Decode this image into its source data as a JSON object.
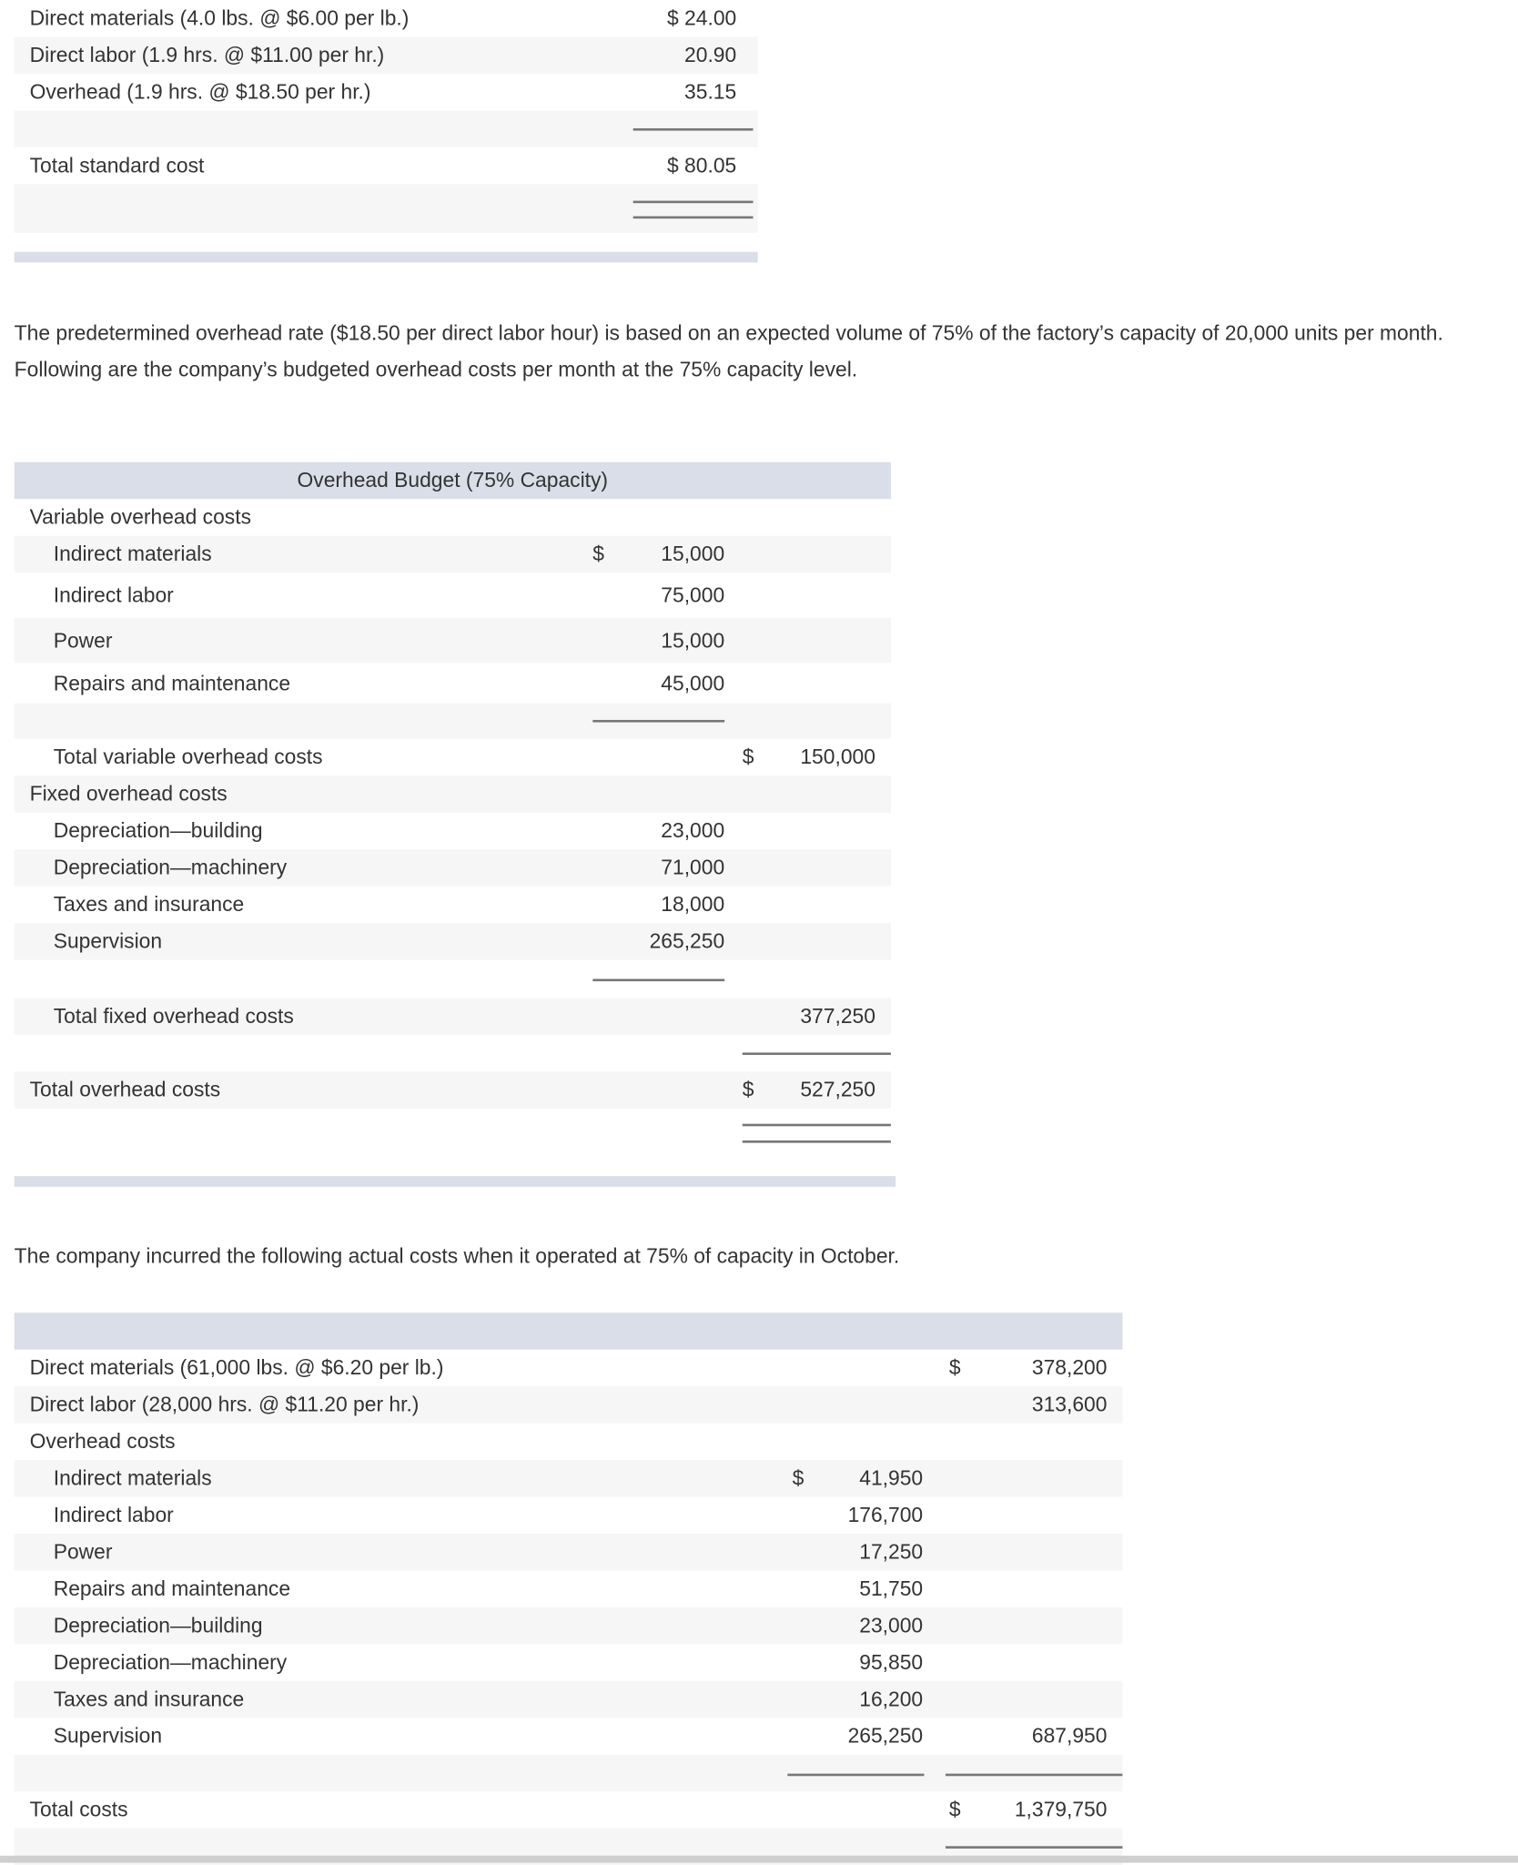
{
  "standard_cost_table": {
    "rows": [
      {
        "label": "Direct materials (4.0 lbs. @ $6.00 per lb.)",
        "amount": "$ 24.00"
      },
      {
        "label": "Direct labor (1.9 hrs. @ $11.00 per hr.)",
        "amount": "20.90"
      },
      {
        "label": "Overhead (1.9 hrs. @ $18.50 per hr.)",
        "amount": "35.15"
      },
      {
        "label": "",
        "amount": ""
      },
      {
        "label": "Total standard cost",
        "amount": "$ 80.05"
      },
      {
        "label": "",
        "amount": ""
      }
    ]
  },
  "paragraph_1": "The predetermined overhead rate ($18.50 per direct labor hour) is based on an expected volume of 75% of the factory’s capacity of 20,000 units per month. Following are the company’s budgeted overhead costs per month at the 75% capacity level.",
  "overhead_budget": {
    "title": "Overhead Budget (75% Capacity)",
    "rows": [
      {
        "label": "Variable overhead costs",
        "col1": "",
        "col1_dollar": "",
        "col2": "",
        "col2_dollar": ""
      },
      {
        "label": "Indirect materials",
        "col1": "15,000",
        "col1_dollar": "$",
        "col2": "",
        "col2_dollar": ""
      },
      {
        "label": "Indirect labor",
        "col1": "75,000",
        "col1_dollar": "",
        "col2": "",
        "col2_dollar": ""
      },
      {
        "label": "Power",
        "col1": "15,000",
        "col1_dollar": "",
        "col2": "",
        "col2_dollar": ""
      },
      {
        "label": "Repairs and maintenance",
        "col1": "45,000",
        "col1_dollar": "",
        "col2": "",
        "col2_dollar": ""
      },
      {
        "label": "",
        "col1": "",
        "col1_dollar": "",
        "col2": "",
        "col2_dollar": ""
      },
      {
        "label": "Total variable overhead costs",
        "col1": "",
        "col1_dollar": "",
        "col2": "150,000",
        "col2_dollar": "$"
      },
      {
        "label": "Fixed overhead costs",
        "col1": "",
        "col1_dollar": "",
        "col2": "",
        "col2_dollar": ""
      },
      {
        "label": "Depreciation—building",
        "col1": "23,000",
        "col1_dollar": "",
        "col2": "",
        "col2_dollar": ""
      },
      {
        "label": "Depreciation—machinery",
        "col1": "71,000",
        "col1_dollar": "",
        "col2": "",
        "col2_dollar": ""
      },
      {
        "label": "Taxes and insurance",
        "col1": "18,000",
        "col1_dollar": "",
        "col2": "",
        "col2_dollar": ""
      },
      {
        "label": "Supervision",
        "col1": "265,250",
        "col1_dollar": "",
        "col2": "",
        "col2_dollar": ""
      },
      {
        "label": "",
        "col1": "",
        "col1_dollar": "",
        "col2": "",
        "col2_dollar": ""
      },
      {
        "label": "Total fixed overhead costs",
        "col1": "",
        "col1_dollar": "",
        "col2": "377,250",
        "col2_dollar": ""
      },
      {
        "label": "",
        "col1": "",
        "col1_dollar": "",
        "col2": "",
        "col2_dollar": ""
      },
      {
        "label": "Total overhead costs",
        "col1": "",
        "col1_dollar": "",
        "col2": "527,250",
        "col2_dollar": "$"
      },
      {
        "label": "",
        "col1": "",
        "col1_dollar": "",
        "col2": "",
        "col2_dollar": ""
      }
    ]
  },
  "paragraph_2": "The company incurred the following actual costs when it operated at 75% of capacity in October.",
  "actual_costs": {
    "title": "",
    "rows": [
      {
        "label": "Direct materials (61,000 lbs. @ $6.20 per lb.)",
        "col1": "",
        "col1_dollar": "",
        "col2": "378,200",
        "col2_dollar": "$"
      },
      {
        "label": "Direct labor (28,000 hrs. @ $11.20 per hr.)",
        "col1": "",
        "col1_dollar": "",
        "col2": "313,600",
        "col2_dollar": ""
      },
      {
        "label": "Overhead costs",
        "col1": "",
        "col1_dollar": "",
        "col2": "",
        "col2_dollar": ""
      },
      {
        "label": "Indirect materials",
        "col1": "41,950",
        "col1_dollar": "$",
        "col2": "",
        "col2_dollar": ""
      },
      {
        "label": "Indirect labor",
        "col1": "176,700",
        "col1_dollar": "",
        "col2": "",
        "col2_dollar": ""
      },
      {
        "label": "Power",
        "col1": "17,250",
        "col1_dollar": "",
        "col2": "",
        "col2_dollar": ""
      },
      {
        "label": "Repairs and maintenance",
        "col1": "51,750",
        "col1_dollar": "",
        "col2": "",
        "col2_dollar": ""
      },
      {
        "label": "Depreciation—building",
        "col1": "23,000",
        "col1_dollar": "",
        "col2": "",
        "col2_dollar": ""
      },
      {
        "label": "Depreciation—machinery",
        "col1": "95,850",
        "col1_dollar": "",
        "col2": "",
        "col2_dollar": ""
      },
      {
        "label": "Taxes and insurance",
        "col1": "16,200",
        "col1_dollar": "",
        "col2": "",
        "col2_dollar": ""
      },
      {
        "label": "Supervision",
        "col1": "265,250",
        "col1_dollar": "",
        "col2": "687,950",
        "col2_dollar": ""
      },
      {
        "label": "",
        "col1": "",
        "col1_dollar": "",
        "col2": "",
        "col2_dollar": ""
      },
      {
        "label": "Total costs",
        "col1": "",
        "col1_dollar": "",
        "col2": "1,379,750",
        "col2_dollar": "$"
      },
      {
        "label": "",
        "col1": "",
        "col1_dollar": "",
        "col2": "",
        "col2_dollar": ""
      }
    ]
  }
}
